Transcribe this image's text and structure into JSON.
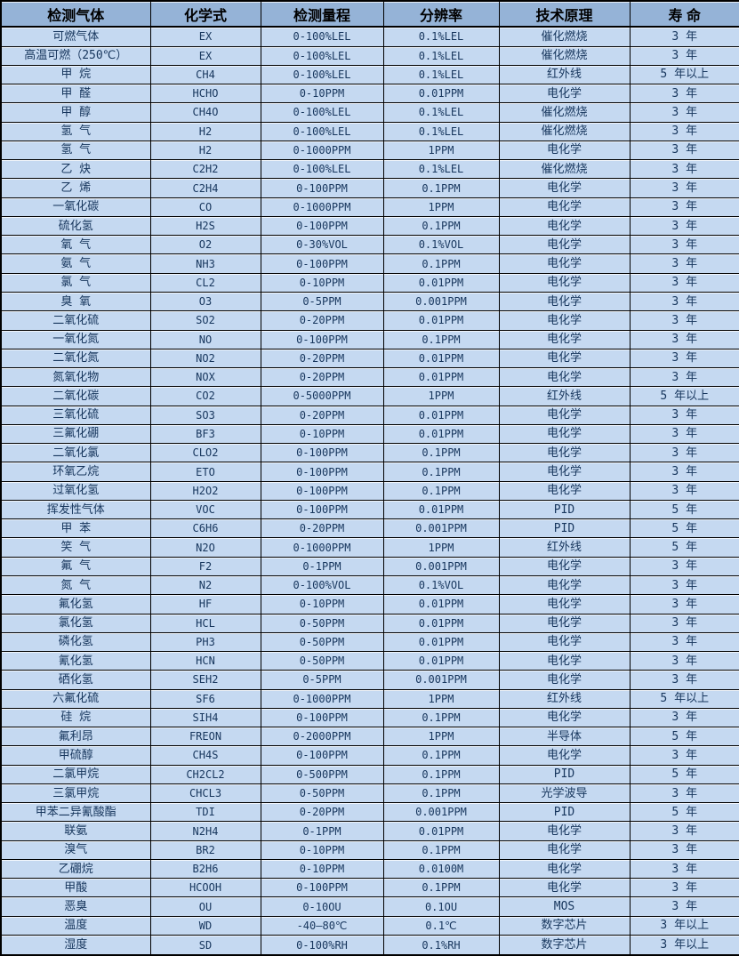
{
  "colors": {
    "header_bg": "#95b3d7",
    "row_bg": "#c5d9f1",
    "border": "#000000",
    "text": "#17365d"
  },
  "table": {
    "columns": [
      "检测气体",
      "化学式",
      "检测量程",
      "分辨率",
      "技术原理",
      "寿 命"
    ],
    "rows": [
      [
        "可燃气体",
        "EX",
        "0-100%LEL",
        "0.1%LEL",
        "催化燃烧",
        "3 年"
      ],
      [
        "高温可燃（250℃）",
        "EX",
        "0-100%LEL",
        "0.1%LEL",
        "催化燃烧",
        "3 年"
      ],
      [
        "甲 烷",
        "CH4",
        "0-100%LEL",
        "0.1%LEL",
        "红外线",
        "5 年以上"
      ],
      [
        "甲 醛",
        "HCHO",
        "0-10PPM",
        "0.01PPM",
        "电化学",
        "3 年"
      ],
      [
        "甲 醇",
        "CH4O",
        "0-100%LEL",
        "0.1%LEL",
        "催化燃烧",
        "3 年"
      ],
      [
        "氢 气",
        "H2",
        "0-100%LEL",
        "0.1%LEL",
        "催化燃烧",
        "3 年"
      ],
      [
        "氢 气",
        "H2",
        "0-1000PPM",
        "1PPM",
        "电化学",
        "3 年"
      ],
      [
        "乙 炔",
        "C2H2",
        "0-100%LEL",
        "0.1%LEL",
        "催化燃烧",
        "3 年"
      ],
      [
        "乙 烯",
        "C2H4",
        "0-100PPM",
        "0.1PPM",
        "电化学",
        "3 年"
      ],
      [
        "一氧化碳",
        "CO",
        "0-1000PPM",
        "1PPM",
        "电化学",
        "3 年"
      ],
      [
        "硫化氢",
        "H2S",
        "0-100PPM",
        "0.1PPM",
        "电化学",
        "3 年"
      ],
      [
        "氧 气",
        "O2",
        "0-30%VOL",
        "0.1%VOL",
        "电化学",
        "3 年"
      ],
      [
        "氨 气",
        "NH3",
        "0-100PPM",
        "0.1PPM",
        "电化学",
        "3 年"
      ],
      [
        "氯 气",
        "CL2",
        "0-10PPM",
        "0.01PPM",
        "电化学",
        "3 年"
      ],
      [
        "臭 氧",
        "O3",
        "0-5PPM",
        "0.001PPM",
        "电化学",
        "3 年"
      ],
      [
        "二氧化硫",
        "SO2",
        "0-20PPM",
        "0.01PPM",
        "电化学",
        "3 年"
      ],
      [
        "一氧化氮",
        "NO",
        "0-100PPM",
        "0.1PPM",
        "电化学",
        "3 年"
      ],
      [
        "二氧化氮",
        "NO2",
        "0-20PPM",
        "0.01PPM",
        "电化学",
        "3 年"
      ],
      [
        "氮氧化物",
        "NOX",
        "0-20PPM",
        "0.01PPM",
        "电化学",
        "3 年"
      ],
      [
        "二氧化碳",
        "CO2",
        "0-5000PPM",
        "1PPM",
        "红外线",
        "5 年以上"
      ],
      [
        "三氧化硫",
        "SO3",
        "0-20PPM",
        "0.01PPM",
        "电化学",
        "3 年"
      ],
      [
        "三氟化硼",
        "BF3",
        "0-10PPM",
        "0.01PPM",
        "电化学",
        "3 年"
      ],
      [
        "二氧化氯",
        "CLO2",
        "0-100PPM",
        "0.1PPM",
        "电化学",
        "3 年"
      ],
      [
        "环氧乙烷",
        "ETO",
        "0-100PPM",
        "0.1PPM",
        "电化学",
        "3 年"
      ],
      [
        "过氧化氢",
        "H2O2",
        "0-100PPM",
        "0.1PPM",
        "电化学",
        "3 年"
      ],
      [
        "挥发性气体",
        "VOC",
        "0-100PPM",
        "0.01PPM",
        "PID",
        "5 年"
      ],
      [
        "甲 苯",
        "C6H6",
        "0-20PPM",
        "0.001PPM",
        "PID",
        "5 年"
      ],
      [
        "笑 气",
        "N2O",
        "0-1000PPM",
        "1PPM",
        "红外线",
        "5 年"
      ],
      [
        "氟 气",
        "F2",
        "0-1PPM",
        "0.001PPM",
        "电化学",
        "3 年"
      ],
      [
        "氮 气",
        "N2",
        "0-100%VOL",
        "0.1%VOL",
        "电化学",
        "3 年"
      ],
      [
        "氟化氢",
        "HF",
        "0-10PPM",
        "0.01PPM",
        "电化学",
        "3 年"
      ],
      [
        "氯化氢",
        "HCL",
        "0-50PPM",
        "0.01PPM",
        "电化学",
        "3 年"
      ],
      [
        "磷化氢",
        "PH3",
        "0-50PPM",
        "0.01PPM",
        "电化学",
        "3 年"
      ],
      [
        "氰化氢",
        "HCN",
        "0-50PPM",
        "0.01PPM",
        "电化学",
        "3 年"
      ],
      [
        "硒化氢",
        "SEH2",
        "0-5PPM",
        "0.001PPM",
        "电化学",
        "3 年"
      ],
      [
        "六氟化硫",
        "SF6",
        "0-1000PPM",
        "1PPM",
        "红外线",
        "5 年以上"
      ],
      [
        "硅 烷",
        "SIH4",
        "0-100PPM",
        "0.1PPM",
        "电化学",
        "3 年"
      ],
      [
        "氟利昂",
        "FREON",
        "0-2000PPM",
        "1PPM",
        "半导体",
        "5 年"
      ],
      [
        "甲硫醇",
        "CH4S",
        "0-100PPM",
        "0.1PPM",
        "电化学",
        "3 年"
      ],
      [
        "二氯甲烷",
        "CH2CL2",
        "0-500PPM",
        "0.1PPM",
        "PID",
        "5 年"
      ],
      [
        "三氯甲烷",
        "CHCL3",
        "0-50PPM",
        "0.1PPM",
        "光学波导",
        "3 年"
      ],
      [
        "甲苯二异氰酸酯",
        "TDI",
        "0-20PPM",
        "0.001PPM",
        "PID",
        "5 年"
      ],
      [
        "联氨",
        "N2H4",
        "0-1PPM",
        "0.01PPM",
        "电化学",
        "3 年"
      ],
      [
        "溴气",
        "BR2",
        "0-10PPM",
        "0.1PPM",
        "电化学",
        "3 年"
      ],
      [
        "乙硼烷",
        "B2H6",
        "0-10PPM",
        "0.0100M",
        "电化学",
        "3 年"
      ],
      [
        "甲酸",
        "HCOOH",
        "0-100PPM",
        "0.1PPM",
        "电化学",
        "3 年"
      ],
      [
        "恶臭",
        "OU",
        "0-10OU",
        "0.1OU",
        "MOS",
        "3 年"
      ],
      [
        "温度",
        "WD",
        "-40—80℃",
        "0.1℃",
        "数字芯片",
        "3 年以上"
      ],
      [
        "湿度",
        "SD",
        "0-100%RH",
        "0.1%RH",
        "数字芯片",
        "3 年以上"
      ]
    ]
  }
}
